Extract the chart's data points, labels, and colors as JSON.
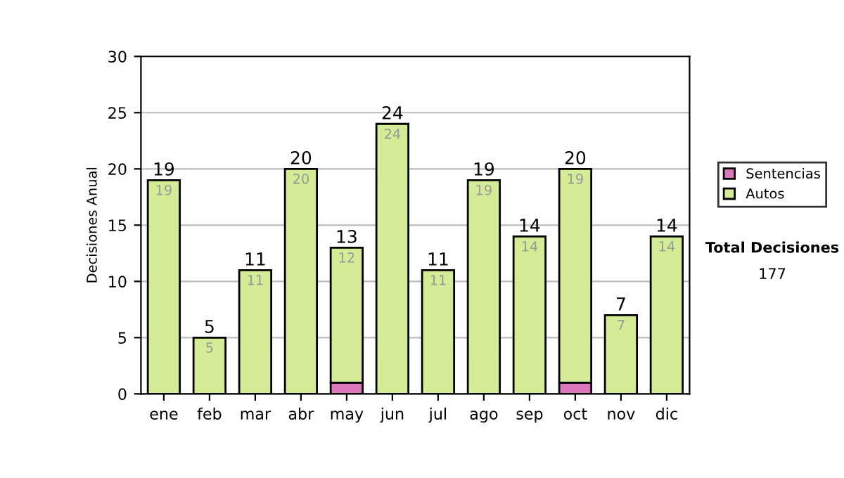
{
  "chart_data": {
    "type": "bar",
    "stacked": true,
    "ylabel": "Decisiones Anual",
    "categories": [
      "ene",
      "feb",
      "mar",
      "abr",
      "may",
      "jun",
      "jul",
      "ago",
      "sep",
      "oct",
      "nov",
      "dic"
    ],
    "series": [
      {
        "name": "Sentencias",
        "color": "#dd77bb",
        "values": [
          0,
          0,
          0,
          0,
          1,
          0,
          0,
          0,
          0,
          1,
          0,
          0
        ]
      },
      {
        "name": "Autos",
        "color": "#d4ec96",
        "values": [
          19,
          5,
          11,
          20,
          12,
          24,
          11,
          19,
          14,
          19,
          7,
          14
        ],
        "value_labels": [
          "19",
          "5",
          "11",
          "20",
          "12",
          "24",
          "11",
          "19",
          "14",
          "19",
          "7",
          "14"
        ]
      }
    ],
    "totals": [
      "19",
      "5",
      "11",
      "20",
      "13",
      "24",
      "11",
      "19",
      "14",
      "20",
      "7",
      "14"
    ],
    "ylim": [
      0,
      30
    ],
    "yticks": [
      0,
      5,
      10,
      15,
      20,
      25,
      30
    ],
    "grid": "y",
    "legend": "right",
    "annotations": [
      "Total Decisiones",
      "177"
    ]
  }
}
